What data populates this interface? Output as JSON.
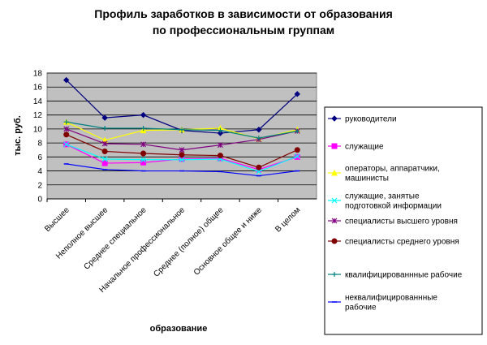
{
  "chart_data": {
    "type": "line",
    "title": [
      "Профиль заработков в зависимости от образования",
      "по профессиональным группам"
    ],
    "xlabel": "образование",
    "ylabel": "тыс. руб.",
    "ylim": [
      0,
      18
    ],
    "yticks": [
      0,
      2,
      4,
      6,
      8,
      10,
      12,
      14,
      16,
      18
    ],
    "grid": true,
    "legend_position": "right",
    "categories": [
      "Высшее",
      "Неполное высшее",
      "Среднее специальное",
      "Начальное профессиональное",
      "Среднее (полное) общее",
      "Основное общее и ниже",
      "В целом"
    ],
    "series": [
      {
        "name": "руководители",
        "color": "#000080",
        "marker": "diamond",
        "values": [
          17,
          11.6,
          12,
          9.8,
          9.4,
          9.9,
          15
        ]
      },
      {
        "name": "служащие",
        "color": "#ff00ff",
        "marker": "square",
        "values": [
          7.8,
          5.1,
          5.2,
          5.7,
          5.8,
          4.2,
          6
        ]
      },
      {
        "name": "операторы, аппаратчики, машинисты",
        "color": "#ffff00",
        "marker": "triangle",
        "values": [
          11,
          8.4,
          9.8,
          9.9,
          10.1,
          8.6,
          9.9
        ]
      },
      {
        "name": "служащие, занятые подготовкой информации",
        "color": "#00ffff",
        "marker": "x",
        "values": [
          7.8,
          5.7,
          5.6,
          5.6,
          5.7,
          3.9,
          6.1
        ]
      },
      {
        "name": "специалисты высшего уровня",
        "color": "#800080",
        "marker": "star",
        "values": [
          10,
          7.9,
          7.8,
          7,
          7.7,
          8.5,
          9.7
        ]
      },
      {
        "name": "специалисты среднего уровня",
        "color": "#800000",
        "marker": "circle",
        "values": [
          9.2,
          6.8,
          6.5,
          6.3,
          6.2,
          4.5,
          7
        ]
      },
      {
        "name": "квалифицированнные рабочие",
        "color": "#008080",
        "marker": "plus",
        "values": [
          11,
          10.1,
          10.1,
          9.9,
          9.8,
          8.7,
          9.7
        ]
      },
      {
        "name": "неквалифицированнные рабочие",
        "color": "#0000ff",
        "marker": "dash",
        "values": [
          5,
          4.2,
          4,
          4,
          3.9,
          3.3,
          4
        ]
      }
    ]
  }
}
